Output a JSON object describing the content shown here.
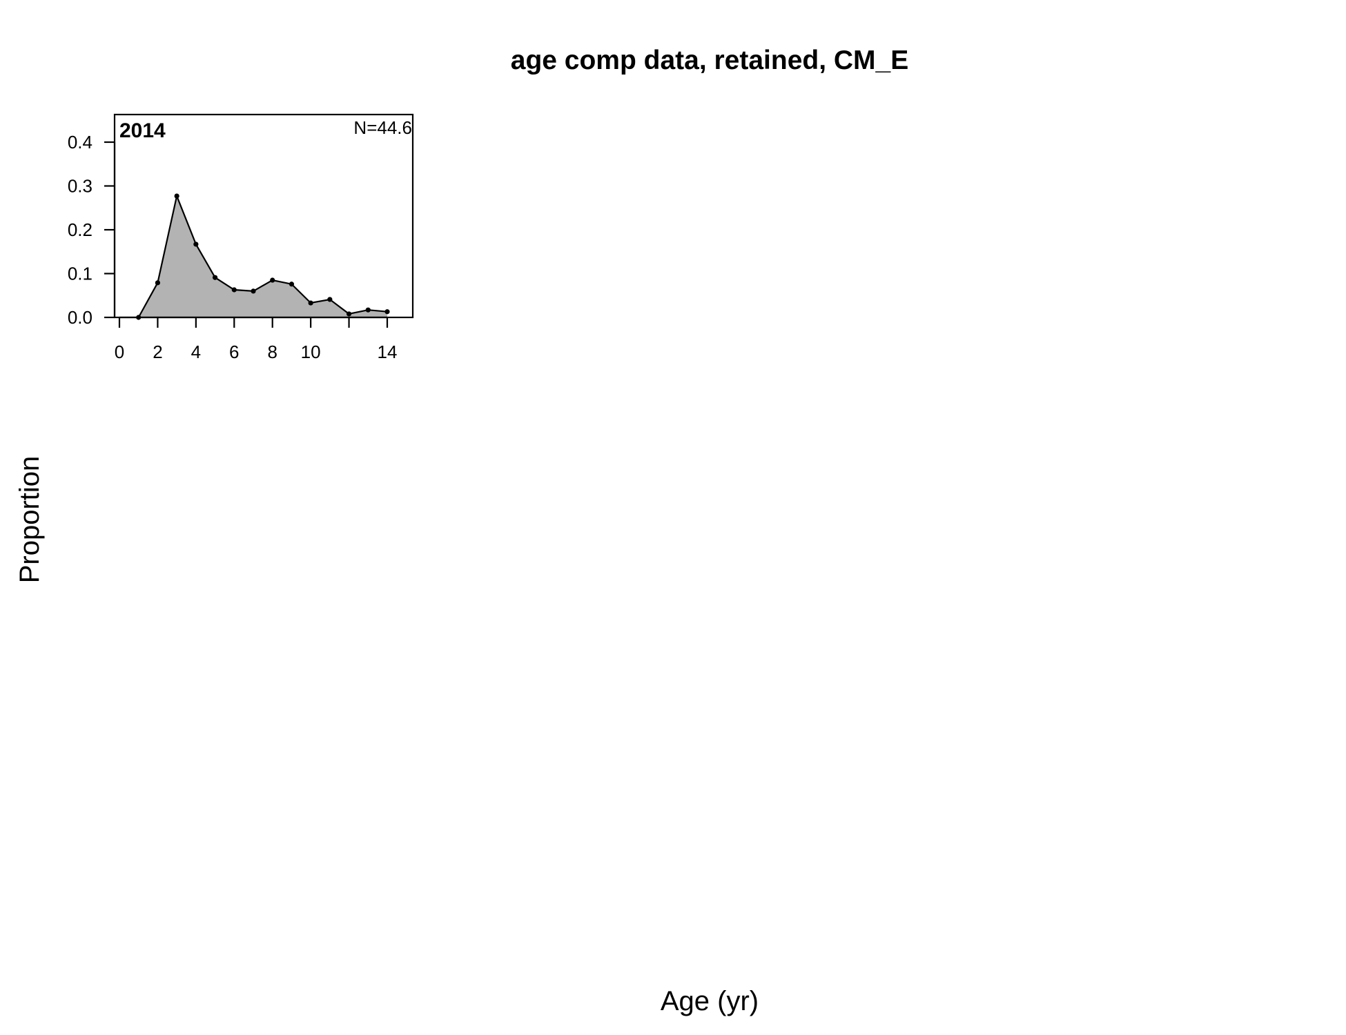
{
  "chart_data": {
    "type": "area",
    "title": "age comp data, retained, CM_E",
    "xlabel": "Age (yr)",
    "ylabel": "Proportion",
    "panels": [
      {
        "year": "2014",
        "n_label": "N=44.6",
        "x": [
          1,
          2,
          3,
          4,
          5,
          6,
          7,
          8,
          9,
          10,
          11,
          12,
          13,
          14
        ],
        "values": [
          0.0,
          0.079,
          0.277,
          0.167,
          0.091,
          0.063,
          0.06,
          0.085,
          0.076,
          0.033,
          0.041,
          0.008,
          0.017,
          0.013
        ],
        "xlim": [
          0,
          14
        ],
        "ylim": [
          0,
          0.4
        ],
        "xticks": [
          0,
          2,
          4,
          6,
          8,
          10,
          14
        ],
        "yticks": [
          "0.0",
          "0.1",
          "0.2",
          "0.3",
          "0.4"
        ],
        "fill_color": "#b3b3b3",
        "line_color": "#000000"
      }
    ]
  }
}
